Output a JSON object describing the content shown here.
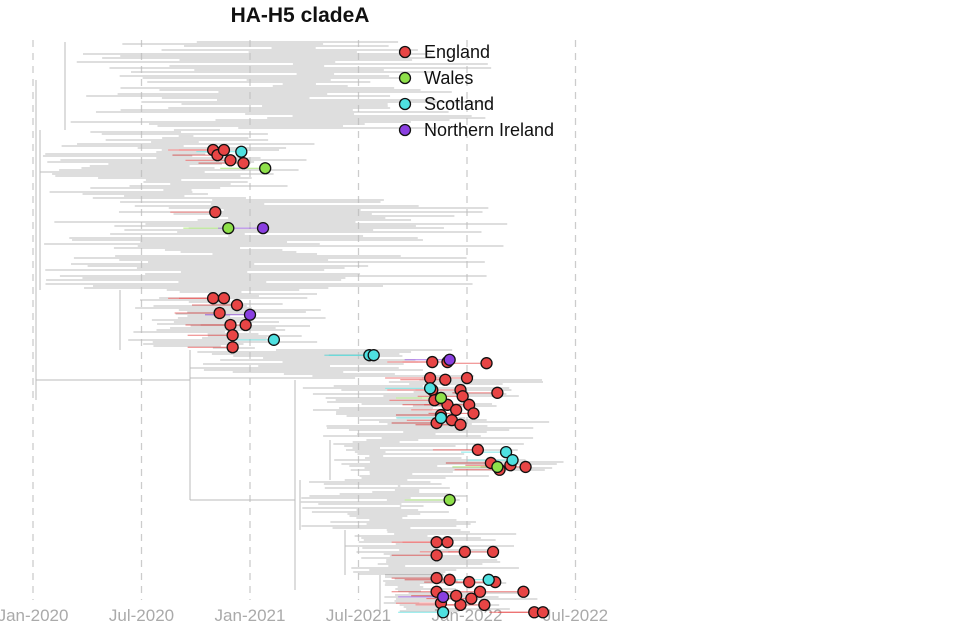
{
  "chart_data": {
    "type": "scatter",
    "subtype": "time-scaled phylogenetic tree",
    "title": "HA-H5 cladeA",
    "xlabel": "",
    "ylabel": "",
    "x_ticks": [
      {
        "label": "Jan-2020",
        "year": 2020.0
      },
      {
        "label": "Jul-2020",
        "year": 2020.5
      },
      {
        "label": "Jan-2021",
        "year": 2021.0
      },
      {
        "label": "Jul-2021",
        "year": 2021.5
      },
      {
        "label": "Jan-2022",
        "year": 2022.0
      },
      {
        "label": "Jul-2022",
        "year": 2022.5
      }
    ],
    "xlim": [
      2019.98,
      2022.52
    ],
    "grid": "vertical dashed",
    "legend_position": "top-right",
    "legend": [
      {
        "name": "England",
        "color": "#e84545"
      },
      {
        "name": "Wales",
        "color": "#8ee04a"
      },
      {
        "name": "Scotland",
        "color": "#4ee0e0"
      },
      {
        "name": "Northern Ireland",
        "color": "#8a3fe0"
      }
    ],
    "points": [
      {
        "c": "England",
        "date": 2020.83,
        "tip": 19.3
      },
      {
        "c": "England",
        "date": 2020.85,
        "tip": 20.2
      },
      {
        "c": "England",
        "date": 2020.88,
        "tip": 19.3
      },
      {
        "c": "England",
        "date": 2020.91,
        "tip": 21.1
      },
      {
        "c": "England",
        "date": 2020.97,
        "tip": 21.6
      },
      {
        "c": "England",
        "date": 2020.84,
        "tip": 30.2
      },
      {
        "c": "England",
        "date": 2020.83,
        "tip": 45.3
      },
      {
        "c": "England",
        "date": 2020.88,
        "tip": 45.3
      },
      {
        "c": "England",
        "date": 2020.94,
        "tip": 46.5
      },
      {
        "c": "England",
        "date": 2020.86,
        "tip": 47.9
      },
      {
        "c": "England",
        "date": 2020.91,
        "tip": 50
      },
      {
        "c": "England",
        "date": 2020.98,
        "tip": 50
      },
      {
        "c": "England",
        "date": 2020.92,
        "tip": 51.8
      },
      {
        "c": "England",
        "date": 2020.92,
        "tip": 53.9
      },
      {
        "c": "England",
        "date": 2021.84,
        "tip": 56.5
      },
      {
        "c": "England",
        "date": 2021.91,
        "tip": 56.5
      },
      {
        "c": "England",
        "date": 2022.09,
        "tip": 56.7
      },
      {
        "c": "England",
        "date": 2021.83,
        "tip": 59.3
      },
      {
        "c": "England",
        "date": 2021.9,
        "tip": 59.6
      },
      {
        "c": "England",
        "date": 2022.0,
        "tip": 59.3
      },
      {
        "c": "England",
        "date": 2021.84,
        "tip": 61.4
      },
      {
        "c": "England",
        "date": 2021.97,
        "tip": 61.4
      },
      {
        "c": "England",
        "date": 2022.14,
        "tip": 61.9
      },
      {
        "c": "England",
        "date": 2021.85,
        "tip": 63.2
      },
      {
        "c": "England",
        "date": 2021.91,
        "tip": 64.0
      },
      {
        "c": "England",
        "date": 2021.95,
        "tip": 64.9
      },
      {
        "c": "England",
        "date": 2021.88,
        "tip": 65.8
      },
      {
        "c": "England",
        "date": 2021.98,
        "tip": 62.5
      },
      {
        "c": "England",
        "date": 2022.01,
        "tip": 64.0
      },
      {
        "c": "England",
        "date": 2021.93,
        "tip": 66.7
      },
      {
        "c": "England",
        "date": 2021.97,
        "tip": 67.5
      },
      {
        "c": "England",
        "date": 2022.03,
        "tip": 65.5
      },
      {
        "c": "England",
        "date": 2021.86,
        "tip": 67.2
      },
      {
        "c": "England",
        "date": 2022.05,
        "tip": 71.9
      },
      {
        "c": "England",
        "date": 2022.11,
        "tip": 74.2
      },
      {
        "c": "England",
        "date": 2022.15,
        "tip": 75.4
      },
      {
        "c": "England",
        "date": 2022.27,
        "tip": 74.9
      },
      {
        "c": "England",
        "date": 2022.2,
        "tip": 74.6
      },
      {
        "c": "England",
        "date": 2021.86,
        "tip": 88.1
      },
      {
        "c": "England",
        "date": 2021.91,
        "tip": 88.1
      },
      {
        "c": "England",
        "date": 2021.86,
        "tip": 90.4
      },
      {
        "c": "England",
        "date": 2021.99,
        "tip": 89.8
      },
      {
        "c": "England",
        "date": 2022.12,
        "tip": 89.8
      },
      {
        "c": "England",
        "date": 2021.86,
        "tip": 94.4
      },
      {
        "c": "England",
        "date": 2021.92,
        "tip": 94.7
      },
      {
        "c": "England",
        "date": 2022.01,
        "tip": 95.1
      },
      {
        "c": "England",
        "date": 2022.13,
        "tip": 95.1
      },
      {
        "c": "England",
        "date": 2021.86,
        "tip": 96.8
      },
      {
        "c": "England",
        "date": 2022.06,
        "tip": 96.8
      },
      {
        "c": "England",
        "date": 2022.26,
        "tip": 96.8
      },
      {
        "c": "England",
        "date": 2021.88,
        "tip": 98.8
      },
      {
        "c": "England",
        "date": 2021.97,
        "tip": 99.1
      },
      {
        "c": "England",
        "date": 2022.08,
        "tip": 99.1
      },
      {
        "c": "England",
        "date": 2022.31,
        "tip": 100.4
      },
      {
        "c": "England",
        "date": 2022.35,
        "tip": 100.4
      },
      {
        "c": "England",
        "date": 2021.95,
        "tip": 97.5
      },
      {
        "c": "England",
        "date": 2022.02,
        "tip": 98.0
      },
      {
        "c": "Wales",
        "date": 2021.07,
        "tip": 22.5
      },
      {
        "c": "Wales",
        "date": 2020.9,
        "tip": 33
      },
      {
        "c": "Wales",
        "date": 2021.88,
        "tip": 62.8
      },
      {
        "c": "Wales",
        "date": 2021.92,
        "tip": 80.7
      },
      {
        "c": "Wales",
        "date": 2022.14,
        "tip": 74.9
      },
      {
        "c": "Scotland",
        "date": 2020.96,
        "tip": 19.6
      },
      {
        "c": "Scotland",
        "date": 2021.11,
        "tip": 52.6
      },
      {
        "c": "Scotland",
        "date": 2021.55,
        "tip": 55.3
      },
      {
        "c": "Scotland",
        "date": 2021.57,
        "tip": 55.3
      },
      {
        "c": "Scotland",
        "date": 2021.83,
        "tip": 61.1
      },
      {
        "c": "Scotland",
        "date": 2021.88,
        "tip": 66.3
      },
      {
        "c": "Scotland",
        "date": 2022.18,
        "tip": 72.3
      },
      {
        "c": "Scotland",
        "date": 2022.21,
        "tip": 73.7
      },
      {
        "c": "Scotland",
        "date": 2022.1,
        "tip": 94.7
      },
      {
        "c": "Scotland",
        "date": 2021.89,
        "tip": 100.4
      },
      {
        "c": "Northern Ireland",
        "date": 2021.06,
        "tip": 33
      },
      {
        "c": "Northern Ireland",
        "date": 2021.0,
        "tip": 48.2
      },
      {
        "c": "Northern Ireland",
        "date": 2021.92,
        "tip": 56.1
      },
      {
        "c": "Northern Ireland",
        "date": 2021.89,
        "tip": 97.7
      }
    ]
  }
}
